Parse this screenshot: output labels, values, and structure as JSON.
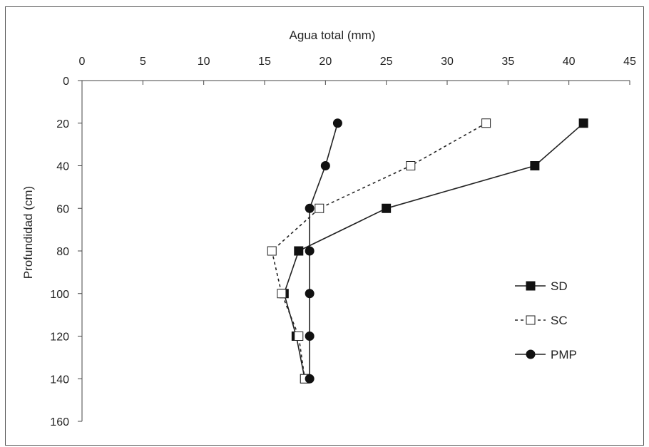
{
  "chart_data": {
    "type": "line",
    "xlabel": "Agua total (mm)",
    "ylabel": "Profundidad (cm)",
    "xlim": [
      0,
      45
    ],
    "ylim": [
      0,
      160
    ],
    "y_inverted": true,
    "x_axis_position": "top",
    "x_ticks": [
      "0",
      "5",
      "10",
      "15",
      "20",
      "25",
      "30",
      "35",
      "40",
      "45"
    ],
    "y_ticks": [
      "0",
      "20",
      "40",
      "60",
      "80",
      "100",
      "120",
      "140",
      "160"
    ],
    "grid": false,
    "legend_position": "right",
    "series": [
      {
        "name": "SD",
        "line": "solid",
        "marker": "filled-square",
        "points": [
          [
            41.2,
            20
          ],
          [
            37.2,
            40
          ],
          [
            25.0,
            60
          ],
          [
            17.8,
            80
          ],
          [
            16.6,
            100
          ],
          [
            17.6,
            120
          ],
          [
            18.3,
            140
          ]
        ]
      },
      {
        "name": "SC",
        "line": "dashed",
        "marker": "open-square",
        "points": [
          [
            33.2,
            20
          ],
          [
            27.0,
            40
          ],
          [
            19.5,
            60
          ],
          [
            15.6,
            80
          ],
          [
            16.4,
            100
          ],
          [
            17.8,
            120
          ],
          [
            18.3,
            140
          ]
        ]
      },
      {
        "name": "PMP",
        "line": "solid",
        "marker": "filled-circle",
        "points": [
          [
            21.0,
            20
          ],
          [
            20.0,
            40
          ],
          [
            18.7,
            60
          ],
          [
            18.7,
            80
          ],
          [
            18.7,
            100
          ],
          [
            18.7,
            120
          ],
          [
            18.7,
            140
          ]
        ]
      }
    ]
  }
}
